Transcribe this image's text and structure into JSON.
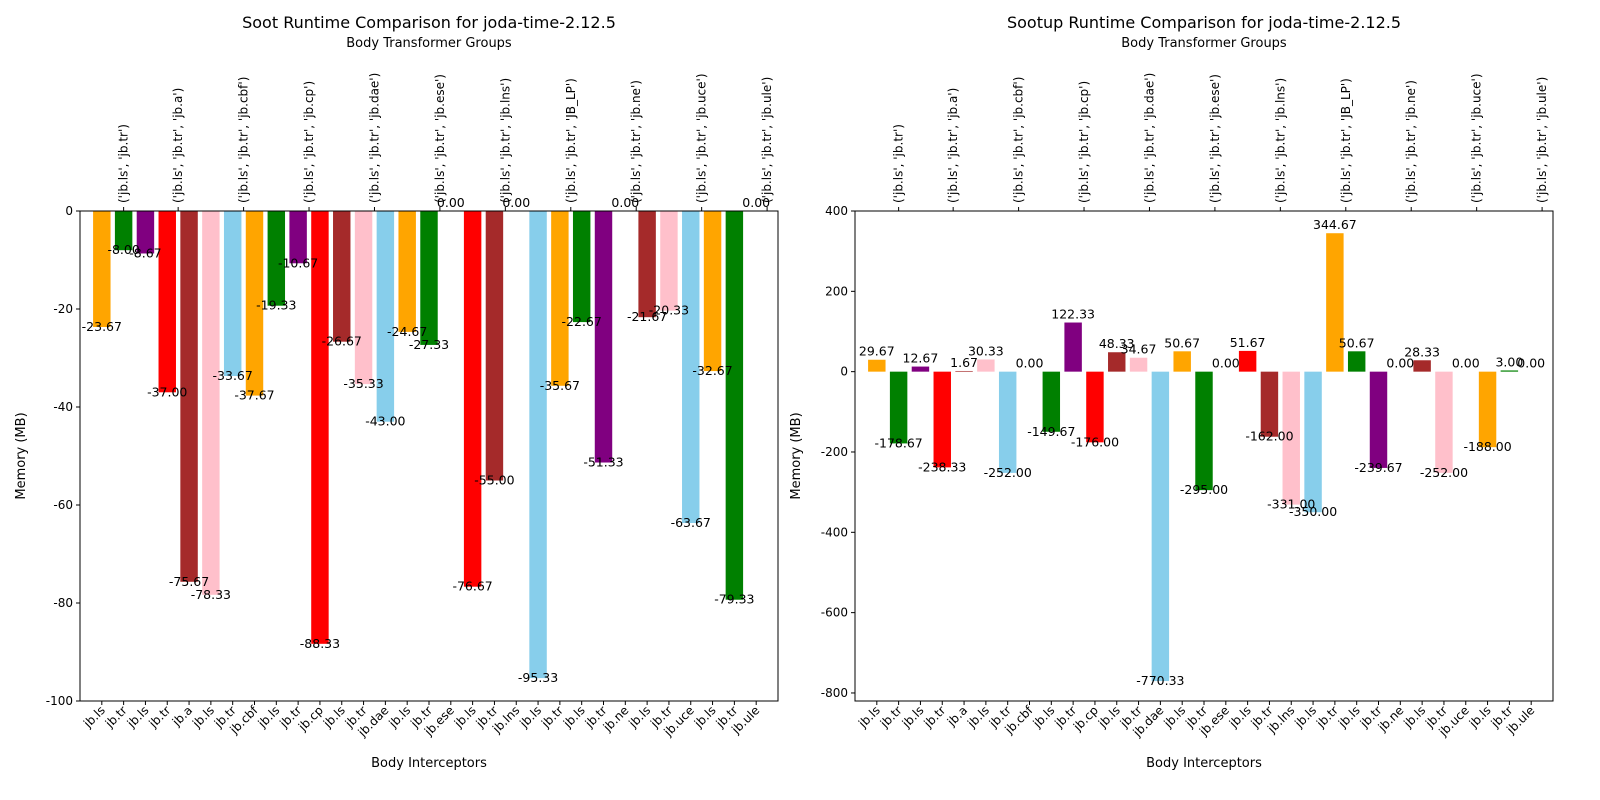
{
  "chart_data": [
    {
      "type": "bar",
      "title": "Soot Runtime Comparison for joda-time-2.12.5",
      "top_axis_label": "Body Transformer Groups",
      "xlabel": "Body Interceptors",
      "ylabel": "Memory (MB)",
      "ylim": [
        -100,
        0
      ],
      "yticks": [
        0,
        -20,
        -40,
        -60,
        -80,
        -100
      ],
      "categories": [
        "jb.ls",
        "jb.tr",
        "jb.ls",
        "jb.tr",
        "jb.a",
        "jb.ls",
        "jb.tr",
        "jb.cbf",
        "jb.ls",
        "jb.tr",
        "jb.cp",
        "jb.ls",
        "jb.tr",
        "jb.dae",
        "jb.ls",
        "jb.tr",
        "jb.ese",
        "jb.ls",
        "jb.tr",
        "jb.lns",
        "jb.ls",
        "jb.tr",
        "jb.ls",
        "jb.tr",
        "jb.ne",
        "jb.ls",
        "jb.tr",
        "jb.uce",
        "jb.ls",
        "jb.tr",
        "jb.ule"
      ],
      "values": [
        -23.67,
        -8.0,
        -8.67,
        -37.0,
        -75.67,
        -78.33,
        -33.67,
        -37.67,
        -19.33,
        -10.67,
        -88.33,
        -26.67,
        -35.33,
        -43.0,
        -24.67,
        -27.33,
        0.0,
        -76.67,
        -55.0,
        0.0,
        -95.33,
        -35.67,
        -22.67,
        -51.33,
        0.0,
        -21.67,
        -20.33,
        -63.67,
        -32.67,
        -79.33,
        0.0
      ],
      "labels": [
        "-23.67",
        "-8.00",
        "-8.67",
        "-37.00",
        "-75.67",
        "-78.33",
        "-33.67",
        "-37.67",
        "-19.33",
        "-10.67",
        "-88.33",
        "-26.67",
        "-35.33",
        "-43.00",
        "-24.67",
        "-27.33",
        "0.00",
        "-76.67",
        "-55.00",
        "0.00",
        "-95.33",
        "-35.67",
        "-22.67",
        "-51.33",
        "0.00",
        "-21.67",
        "-20.33",
        "-63.67",
        "-32.67",
        "-79.33",
        "0.00"
      ],
      "colors": [
        "#FFA500",
        "#008000",
        "#800080",
        "#FF0000",
        "#A52A2A",
        "#FFC0CB",
        "#87CEEB",
        "#FFA500",
        "#008000",
        "#800080",
        "#FF0000",
        "#A52A2A",
        "#FFC0CB",
        "#87CEEB",
        "#FFA500",
        "#008000",
        "#800080",
        "#FF0000",
        "#A52A2A",
        "#FFC0CB",
        "#87CEEB",
        "#FFA500",
        "#008000",
        "#800080",
        "#FF0000",
        "#A52A2A",
        "#FFC0CB",
        "#87CEEB",
        "#FFA500",
        "#008000",
        "#800080"
      ],
      "groups": [
        "('jb.ls', 'jb.tr')",
        "('jb.ls', 'jb.tr', 'jb.a')",
        "('jb.ls', 'jb.tr', 'jb.cbf')",
        "('jb.ls', 'jb.tr', 'jb.cp')",
        "('jb.ls', 'jb.tr', 'jb.dae')",
        "('jb.ls', 'jb.tr', 'jb.ese')",
        "('jb.ls', 'jb.tr', 'jb.lns')",
        "('jb.ls', 'jb.tr', 'JB_LP')",
        "('jb.ls', 'jb.tr', 'jb.ne')",
        "('jb.ls', 'jb.tr', 'jb.uce')",
        "('jb.ls', 'jb.tr', 'jb.ule')"
      ],
      "group_positions": [
        1,
        3.5,
        6.5,
        9.5,
        12.5,
        15.5,
        18.5,
        21.5,
        24.5,
        27.5,
        30.5
      ]
    },
    {
      "type": "bar",
      "title": "Sootup Runtime Comparison for joda-time-2.12.5",
      "top_axis_label": "Body Transformer Groups",
      "xlabel": "Body Interceptors",
      "ylabel": "Memory (MB)",
      "ylim": [
        -820,
        400
      ],
      "yticks": [
        400,
        200,
        0,
        -200,
        -400,
        -600,
        -800
      ],
      "categories": [
        "jb.ls",
        "jb.tr",
        "jb.ls",
        "jb.tr",
        "jb.a",
        "jb.ls",
        "jb.tr",
        "jb.cbf",
        "jb.ls",
        "jb.tr",
        "jb.cp",
        "jb.ls",
        "jb.tr",
        "jb.dae",
        "jb.ls",
        "jb.tr",
        "jb.ese",
        "jb.ls",
        "jb.tr",
        "jb.lns",
        "jb.ls",
        "jb.tr",
        "jb.ls",
        "jb.tr",
        "jb.ne",
        "jb.ls",
        "jb.tr",
        "jb.uce",
        "jb.ls",
        "jb.tr",
        "jb.ule"
      ],
      "values": [
        29.67,
        -178.67,
        12.67,
        -238.33,
        1.67,
        30.33,
        -252.0,
        0.0,
        -149.67,
        122.33,
        -176.0,
        48.33,
        34.67,
        -770.33,
        50.67,
        -295.0,
        0.0,
        51.67,
        -162.0,
        -331.0,
        -350.0,
        344.67,
        50.67,
        -239.67,
        0.0,
        28.33,
        -252.0,
        0.0,
        -188.0,
        3.0,
        0.0
      ],
      "labels": [
        "29.67",
        "-178.67",
        "12.67",
        "-238.33",
        "1.67",
        "30.33",
        "-252.00",
        "0.00",
        "-149.67",
        "122.33",
        "-176.00",
        "48.33",
        "34.67",
        "-770.33",
        "50.67",
        "-295.00",
        "0.00",
        "51.67",
        "-162.00",
        "-331.00",
        "-350.00",
        "344.67",
        "50.67",
        "-239.67",
        "0.00",
        "28.33",
        "-252.00",
        "0.00",
        "-188.00",
        "3.00",
        "0.00"
      ],
      "colors": [
        "#FFA500",
        "#008000",
        "#800080",
        "#FF0000",
        "#A52A2A",
        "#FFC0CB",
        "#87CEEB",
        "#FFA500",
        "#008000",
        "#800080",
        "#FF0000",
        "#A52A2A",
        "#FFC0CB",
        "#87CEEB",
        "#FFA500",
        "#008000",
        "#800080",
        "#FF0000",
        "#A52A2A",
        "#FFC0CB",
        "#87CEEB",
        "#FFA500",
        "#008000",
        "#800080",
        "#FF0000",
        "#A52A2A",
        "#FFC0CB",
        "#87CEEB",
        "#FFA500",
        "#008000",
        "#800080"
      ],
      "groups": [
        "('jb.ls', 'jb.tr')",
        "('jb.ls', 'jb.tr', 'jb.a')",
        "('jb.ls', 'jb.tr', 'jb.cbf')",
        "('jb.ls', 'jb.tr', 'jb.cp')",
        "('jb.ls', 'jb.tr', 'jb.dae')",
        "('jb.ls', 'jb.tr', 'jb.ese')",
        "('jb.ls', 'jb.tr', 'jb.lns')",
        "('jb.ls', 'jb.tr', 'JB_LP')",
        "('jb.ls', 'jb.tr', 'jb.ne')",
        "('jb.ls', 'jb.tr', 'jb.uce')",
        "('jb.ls', 'jb.tr', 'jb.ule')"
      ],
      "group_positions": [
        1,
        3.5,
        6.5,
        9.5,
        12.5,
        15.5,
        18.5,
        21.5,
        24.5,
        27.5,
        30.5
      ]
    }
  ]
}
